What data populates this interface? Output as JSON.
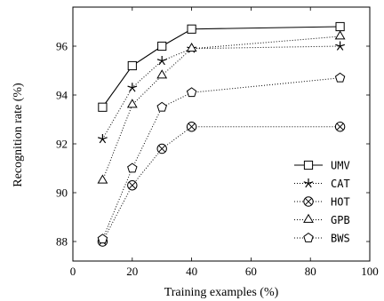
{
  "chart_data": {
    "type": "line",
    "xlabel": "Training examples (%)",
    "ylabel": "Recognition rate (%)",
    "xlim": [
      0,
      100
    ],
    "ylim": [
      87.2,
      97.6
    ],
    "xticks": [
      0,
      20,
      40,
      60,
      80,
      100
    ],
    "yticks": [
      88,
      90,
      92,
      94,
      96
    ],
    "grid": false,
    "legend_position": "right",
    "x": [
      10,
      20,
      30,
      40,
      90
    ],
    "series": [
      {
        "name": "UMV",
        "values": [
          93.5,
          95.2,
          96.0,
          96.7,
          96.8
        ],
        "marker": "square",
        "line": "solid"
      },
      {
        "name": "CAT",
        "values": [
          92.2,
          94.3,
          95.4,
          95.9,
          96.0
        ],
        "marker": "star",
        "line": "dotted"
      },
      {
        "name": "HOT",
        "values": [
          88.0,
          90.3,
          91.8,
          92.7,
          92.7
        ],
        "marker": "circle-x",
        "line": "dotted"
      },
      {
        "name": "GPB",
        "values": [
          90.5,
          93.6,
          94.8,
          95.9,
          96.4
        ],
        "marker": "triangle",
        "line": "dotted"
      },
      {
        "name": "BWS",
        "values": [
          88.1,
          91.0,
          93.5,
          94.1,
          94.7
        ],
        "marker": "pentagon",
        "line": "dotted"
      }
    ]
  }
}
